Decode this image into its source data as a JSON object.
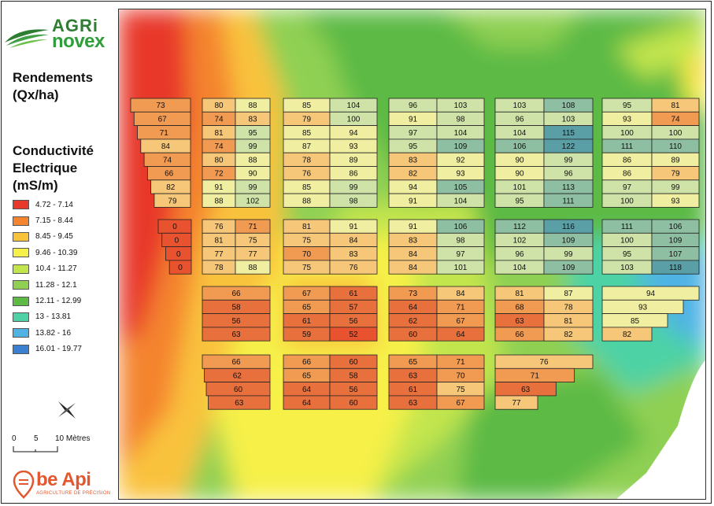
{
  "brand": {
    "agri": "AGRi",
    "novex": "novex"
  },
  "titles": {
    "yield": [
      "Rendements",
      "(Qx/ha)"
    ],
    "conductivity": [
      "Conductivité",
      "Electrique",
      "(mS/m)"
    ]
  },
  "legend": {
    "items": [
      {
        "label": "4.72 - 7.14",
        "color": "#e8382b"
      },
      {
        "label": "7.15 - 8.44",
        "color": "#f4842f"
      },
      {
        "label": "8.45 - 9.45",
        "color": "#f9c23c"
      },
      {
        "label": "9.46 - 10.39",
        "color": "#f6f04a"
      },
      {
        "label": "10.4 - 11.27",
        "color": "#c2e54e"
      },
      {
        "label": "11.28 - 12.1",
        "color": "#8fd052"
      },
      {
        "label": "12.11 - 12.99",
        "color": "#5cba45"
      },
      {
        "label": "13 - 13.81",
        "color": "#4ed2a5"
      },
      {
        "label": "13.82 - 16",
        "color": "#4fb3e4"
      },
      {
        "label": "16.01 - 19.77",
        "color": "#3a7fd0"
      }
    ]
  },
  "scale": {
    "zero": "0",
    "five": "5",
    "ten": "10 Mètres"
  },
  "footer_brand": {
    "name": "be Api",
    "tagline": "AGRICULTURE DE PRÉCISION"
  },
  "yield_blocks": [
    [
      [
        73
      ],
      [
        67
      ],
      [
        71
      ],
      [
        84
      ],
      [
        74
      ],
      [
        66
      ],
      [
        82
      ],
      [
        79
      ]
    ],
    [
      [
        80,
        88
      ],
      [
        74,
        83
      ],
      [
        81,
        95
      ],
      [
        74,
        99
      ],
      [
        80,
        88
      ],
      [
        72,
        90
      ],
      [
        91,
        99
      ],
      [
        88,
        102
      ]
    ],
    [
      [
        85,
        104
      ],
      [
        79,
        100
      ],
      [
        85,
        94
      ],
      [
        87,
        93
      ],
      [
        78,
        89
      ],
      [
        76,
        86
      ],
      [
        85,
        99
      ],
      [
        88,
        98
      ]
    ],
    [
      [
        96,
        103
      ],
      [
        91,
        98
      ],
      [
        97,
        104
      ],
      [
        95,
        109
      ],
      [
        83,
        92
      ],
      [
        82,
        93
      ],
      [
        94,
        105
      ],
      [
        91,
        104
      ]
    ],
    [
      [
        103,
        108
      ],
      [
        96,
        103
      ],
      [
        104,
        115
      ],
      [
        106,
        122
      ],
      [
        90,
        99
      ],
      [
        90,
        96
      ],
      [
        101,
        113
      ],
      [
        95,
        111
      ]
    ],
    [
      [
        95,
        81
      ],
      [
        93,
        74
      ],
      [
        100,
        100
      ],
      [
        111,
        110
      ],
      [
        86,
        89
      ],
      [
        86,
        79
      ],
      [
        97,
        99
      ],
      [
        100,
        93
      ]
    ],
    [
      [
        0
      ],
      [
        0
      ],
      [
        0
      ],
      [
        0
      ]
    ],
    [
      [
        76,
        71
      ],
      [
        81,
        75
      ],
      [
        77,
        77
      ],
      [
        78,
        88
      ]
    ],
    [
      [
        81,
        91
      ],
      [
        75,
        84
      ],
      [
        70,
        83
      ],
      [
        75,
        76
      ]
    ],
    [
      [
        91,
        106
      ],
      [
        83,
        98
      ],
      [
        84,
        97
      ],
      [
        84,
        101
      ]
    ],
    [
      [
        112,
        116
      ],
      [
        102,
        109
      ],
      [
        96,
        99
      ],
      [
        104,
        109
      ]
    ],
    [
      [
        111,
        106
      ],
      [
        100,
        109
      ],
      [
        95,
        107
      ],
      [
        103,
        118
      ]
    ],
    [
      [
        66
      ],
      [
        58
      ],
      [
        56
      ],
      [
        63
      ]
    ],
    [
      [
        67,
        61
      ],
      [
        65,
        57
      ],
      [
        61,
        56
      ],
      [
        59,
        52
      ]
    ],
    [
      [
        73,
        84
      ],
      [
        64,
        71
      ],
      [
        62,
        67
      ],
      [
        60,
        64
      ]
    ],
    [
      [
        81,
        87
      ],
      [
        68,
        78
      ],
      [
        63,
        81
      ],
      [
        66,
        82
      ]
    ],
    [
      [
        94
      ],
      [
        93
      ],
      [
        85
      ],
      [
        82
      ]
    ],
    [
      [
        66
      ],
      [
        62
      ],
      [
        60
      ],
      [
        63
      ]
    ],
    [
      [
        66,
        60
      ],
      [
        65,
        58
      ],
      [
        64,
        56
      ],
      [
        64,
        60
      ]
    ],
    [
      [
        65,
        71
      ],
      [
        63,
        70
      ],
      [
        61,
        75
      ],
      [
        63,
        67
      ]
    ],
    [
      [
        76
      ],
      [
        71
      ],
      [
        63
      ],
      [
        77
      ]
    ]
  ]
}
